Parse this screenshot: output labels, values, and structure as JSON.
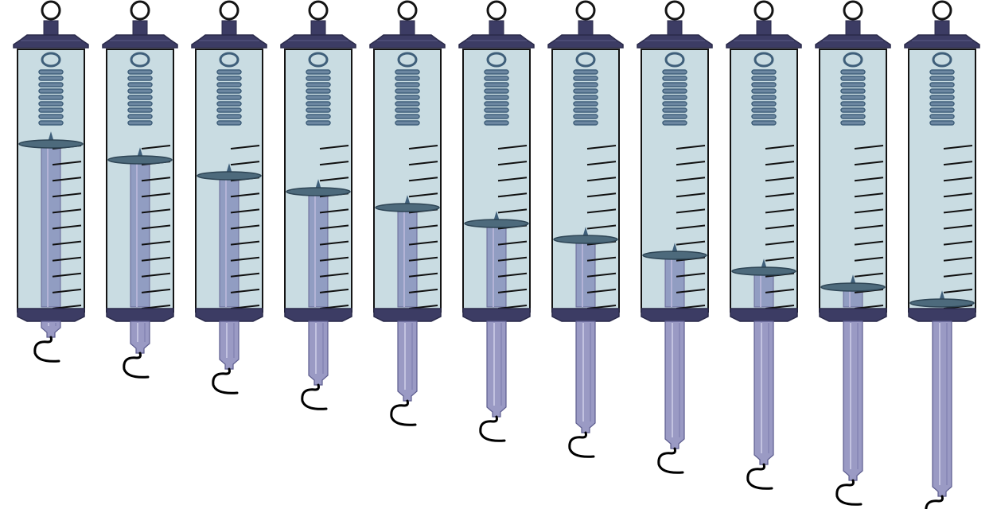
{
  "colors": {
    "background": "#ffffff",
    "cap": "#3c3c64",
    "cap_dark": "#2a2a4a",
    "barrel": "#c9dce2",
    "barrel_stroke": "#141414",
    "spring": "#3f5f7a",
    "spring_light": "#6b86a0",
    "plunger_disc": "#4d6a7c",
    "rod": "#9a9ac4",
    "rod_stroke": "#5c5c8e",
    "inner_rod": "#8b97bf",
    "tick": "#111111",
    "hook": "#000000"
  },
  "scale": {
    "tick_count": 11
  },
  "spring_scales": [
    {
      "id": "scale-1",
      "extension_fraction": 0.0
    },
    {
      "id": "scale-2",
      "extension_fraction": 0.1
    },
    {
      "id": "scale-3",
      "extension_fraction": 0.2
    },
    {
      "id": "scale-4",
      "extension_fraction": 0.3
    },
    {
      "id": "scale-5",
      "extension_fraction": 0.4
    },
    {
      "id": "scale-6",
      "extension_fraction": 0.5
    },
    {
      "id": "scale-7",
      "extension_fraction": 0.6
    },
    {
      "id": "scale-8",
      "extension_fraction": 0.7
    },
    {
      "id": "scale-9",
      "extension_fraction": 0.8
    },
    {
      "id": "scale-10",
      "extension_fraction": 0.9
    },
    {
      "id": "scale-11",
      "extension_fraction": 1.0
    }
  ]
}
